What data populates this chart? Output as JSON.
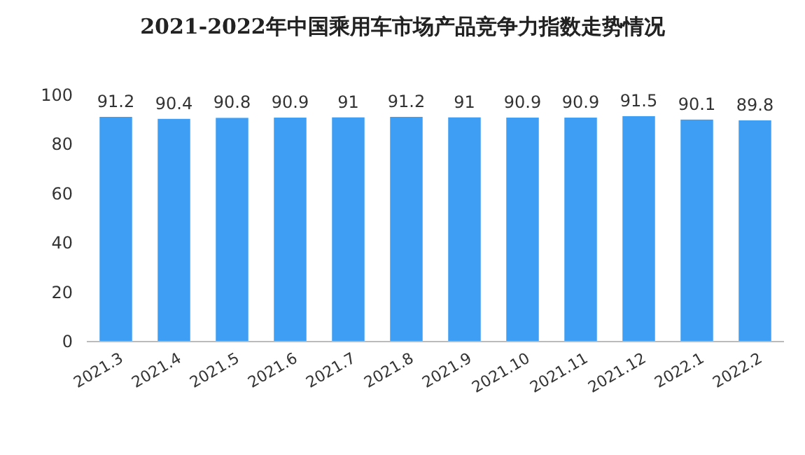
{
  "chart_data": {
    "type": "bar",
    "title": "2021-2022年中国乘用车市场产品竞争力指数走势情况",
    "categories": [
      "2021.3",
      "2021.4",
      "2021.5",
      "2021.6",
      "2021.7",
      "2021.8",
      "2021.9",
      "2021.10",
      "2021.11",
      "2021.12",
      "2022.1",
      "2022.2"
    ],
    "values": [
      91.2,
      90.4,
      90.8,
      90.9,
      91,
      91.2,
      91,
      90.9,
      90.9,
      91.5,
      90.1,
      89.8
    ],
    "color": "#3d9ef4",
    "ylim": [
      0,
      100
    ],
    "yticks": [
      0,
      20,
      40,
      60,
      80,
      100
    ],
    "data_labels": true
  }
}
